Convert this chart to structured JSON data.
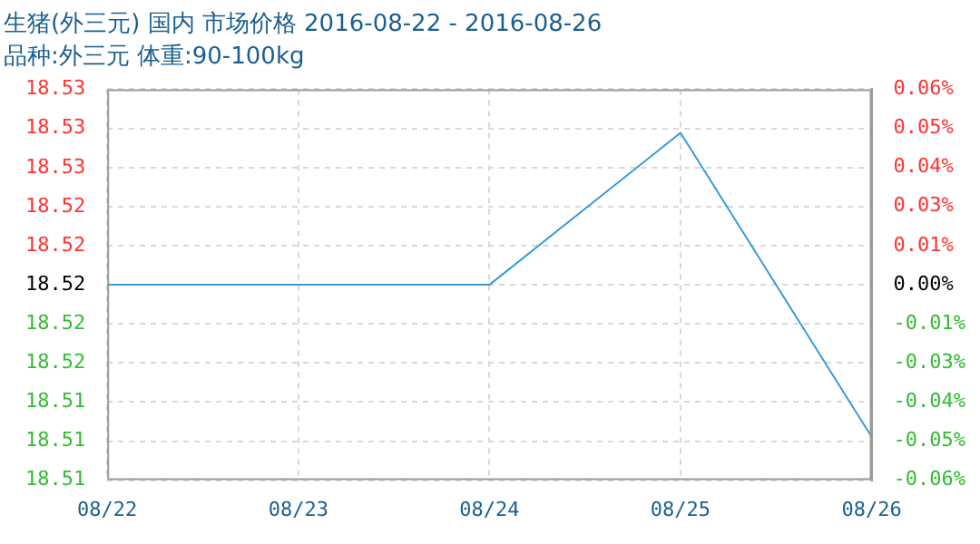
{
  "chart_data": {
    "type": "line",
    "title": "生猪(外三元) 国内 市场价格 2016-08-22 - 2016-08-26",
    "subtitle": "品种:外三元 体重:90-100kg",
    "categories": [
      "08/22",
      "08/23",
      "08/24",
      "08/25",
      "08/26"
    ],
    "series": [
      {
        "color": "#3a9ad9",
        "values": [
          18.52,
          18.52,
          18.52,
          18.529,
          18.511
        ]
      }
    ],
    "ylim": [
      18.50843,
      18.53158
    ],
    "yticks": [
      {
        "value": 18.53158,
        "label": "18.53"
      },
      {
        "value": 18.52926,
        "label": "18.53"
      },
      {
        "value": 18.52694,
        "label": "18.53"
      },
      {
        "value": 18.52463,
        "label": "18.52"
      },
      {
        "value": 18.52232,
        "label": "18.52"
      },
      {
        "value": 18.52,
        "label": "18.52"
      },
      {
        "value": 18.51769,
        "label": "18.52"
      },
      {
        "value": 18.51537,
        "label": "18.52"
      },
      {
        "value": 18.51306,
        "label": "18.51"
      },
      {
        "value": 18.51074,
        "label": "18.51"
      },
      {
        "value": 18.50843,
        "label": "18.51"
      }
    ],
    "y2lim": [
      -0.0625,
      0.0625
    ],
    "y2ticks": [
      {
        "value": 0.0625,
        "label": "0.06%"
      },
      {
        "value": 0.05,
        "label": "0.05%"
      },
      {
        "value": 0.0375,
        "label": "0.04%"
      },
      {
        "value": 0.025,
        "label": "0.03%"
      },
      {
        "value": 0.0125,
        "label": "0.01%"
      },
      {
        "value": 0,
        "label": "0.00%"
      },
      {
        "value": -0.0125,
        "label": "-0.01%"
      },
      {
        "value": -0.025,
        "label": "-0.03%"
      },
      {
        "value": -0.0375,
        "label": "-0.04%"
      },
      {
        "value": -0.05,
        "label": "-0.05%"
      },
      {
        "value": -0.0625,
        "label": "-0.06%"
      }
    ],
    "grid": true,
    "legend": false,
    "marker": "none",
    "line_style": "solid"
  }
}
